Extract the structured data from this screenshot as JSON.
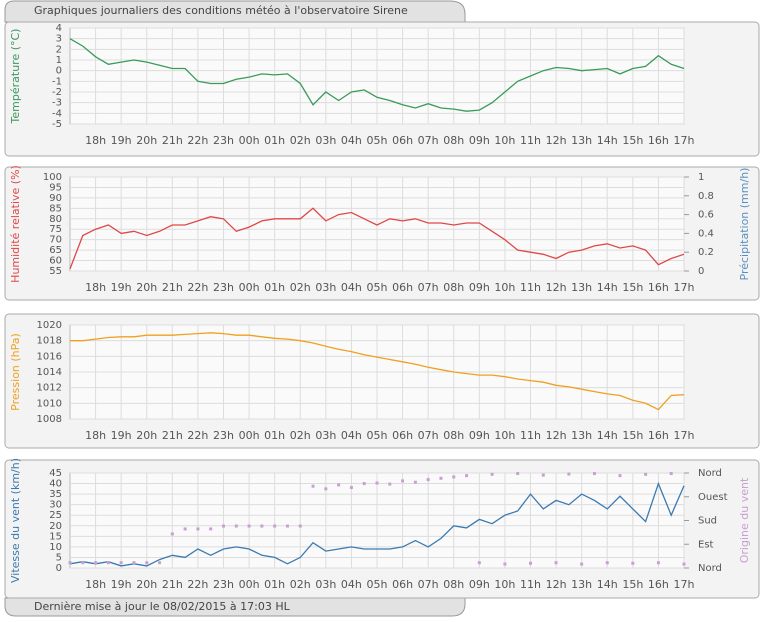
{
  "title": "Graphiques journaliers des conditions météo à l'observatoire Sirene",
  "footer": "Dernière mise à jour le 08/02/2015 à 17:03 HL",
  "chart_data": [
    {
      "type": "line",
      "ylabel": "Température (°C)",
      "grid": true,
      "xlim": [
        17,
        41
      ],
      "xticks": [
        {
          "value": 18,
          "label": "18h"
        },
        {
          "value": 19,
          "label": "19h"
        },
        {
          "value": 20,
          "label": "20h"
        },
        {
          "value": 21,
          "label": "21h"
        },
        {
          "value": 22,
          "label": "22h"
        },
        {
          "value": 23,
          "label": "23h"
        },
        {
          "value": 24,
          "label": "00h"
        },
        {
          "value": 25,
          "label": "01h"
        },
        {
          "value": 26,
          "label": "02h"
        },
        {
          "value": 27,
          "label": "03h"
        },
        {
          "value": 28,
          "label": "04h"
        },
        {
          "value": 29,
          "label": "05h"
        },
        {
          "value": 30,
          "label": "06h"
        },
        {
          "value": 31,
          "label": "07h"
        },
        {
          "value": 32,
          "label": "08h"
        },
        {
          "value": 33,
          "label": "09h"
        },
        {
          "value": 34,
          "label": "10h"
        },
        {
          "value": 35,
          "label": "11h"
        },
        {
          "value": 36,
          "label": "12h"
        },
        {
          "value": 37,
          "label": "13h"
        },
        {
          "value": 38,
          "label": "14h"
        },
        {
          "value": 39,
          "label": "15h"
        },
        {
          "value": 40,
          "label": "16h"
        },
        {
          "value": 41,
          "label": "17h"
        }
      ],
      "ylim": [
        -5,
        4
      ],
      "yticks": [
        -5,
        -4,
        -3,
        -2,
        -1,
        0,
        1,
        2,
        3,
        4
      ],
      "ylabel_color": "#3a9a5c",
      "x": [
        17,
        17.5,
        18,
        18.5,
        19,
        19.5,
        20,
        20.5,
        21,
        21.5,
        22,
        22.5,
        23,
        23.5,
        24,
        24.5,
        25,
        25.5,
        26,
        26.5,
        27,
        27.5,
        28,
        28.5,
        29,
        29.5,
        30,
        30.5,
        31,
        31.5,
        32,
        32.5,
        33,
        33.5,
        34,
        34.5,
        35,
        35.5,
        36,
        36.5,
        37,
        37.5,
        38,
        38.5,
        39,
        39.5,
        40,
        40.5,
        41
      ],
      "series": [
        {
          "color": "#3a9a5c",
          "values": [
            3.0,
            2.3,
            1.3,
            0.6,
            0.8,
            1.0,
            0.8,
            0.5,
            0.2,
            0.2,
            -1.0,
            -1.2,
            -1.2,
            -0.8,
            -0.6,
            -0.3,
            -0.4,
            -0.3,
            -1.2,
            -3.2,
            -2.0,
            -2.8,
            -2.0,
            -1.8,
            -2.5,
            -2.8,
            -3.2,
            -3.5,
            -3.1,
            -3.5,
            -3.6,
            -3.8,
            -3.7,
            -3.0,
            -2.0,
            -1.0,
            -0.5,
            0.0,
            0.3,
            0.2,
            0.0,
            0.1,
            0.2,
            -0.3,
            0.2,
            0.4,
            1.4,
            0.6,
            0.2
          ]
        }
      ]
    },
    {
      "type": "line",
      "ylabel": "Humidité relative (%)",
      "y2label": "Précipitation (mm/h)",
      "grid": true,
      "xlim": [
        17,
        41
      ],
      "xticks": [
        {
          "value": 18,
          "label": "18h"
        },
        {
          "value": 19,
          "label": "19h"
        },
        {
          "value": 20,
          "label": "20h"
        },
        {
          "value": 21,
          "label": "21h"
        },
        {
          "value": 22,
          "label": "22h"
        },
        {
          "value": 23,
          "label": "23h"
        },
        {
          "value": 24,
          "label": "00h"
        },
        {
          "value": 25,
          "label": "01h"
        },
        {
          "value": 26,
          "label": "02h"
        },
        {
          "value": 27,
          "label": "03h"
        },
        {
          "value": 28,
          "label": "04h"
        },
        {
          "value": 29,
          "label": "05h"
        },
        {
          "value": 30,
          "label": "06h"
        },
        {
          "value": 31,
          "label": "07h"
        },
        {
          "value": 32,
          "label": "08h"
        },
        {
          "value": 33,
          "label": "09h"
        },
        {
          "value": 34,
          "label": "10h"
        },
        {
          "value": 35,
          "label": "11h"
        },
        {
          "value": 36,
          "label": "12h"
        },
        {
          "value": 37,
          "label": "13h"
        },
        {
          "value": 38,
          "label": "14h"
        },
        {
          "value": 39,
          "label": "15h"
        },
        {
          "value": 40,
          "label": "16h"
        },
        {
          "value": 41,
          "label": "17h"
        }
      ],
      "ylim": [
        55,
        100
      ],
      "yticks": [
        55,
        60,
        65,
        70,
        75,
        80,
        85,
        90,
        95,
        100
      ],
      "ylabel_color": "#e04848",
      "y2lim": [
        0,
        1
      ],
      "y2ticks": [
        0,
        0.2,
        0.4,
        0.6,
        0.8,
        1
      ],
      "y2label_color": "#5a8fc0",
      "x": [
        17,
        17.5,
        18,
        18.5,
        19,
        19.5,
        20,
        20.5,
        21,
        21.5,
        22,
        22.5,
        23,
        23.5,
        24,
        24.5,
        25,
        25.5,
        26,
        26.5,
        27,
        27.5,
        28,
        28.5,
        29,
        29.5,
        30,
        30.5,
        31,
        31.5,
        32,
        32.5,
        33,
        33.5,
        34,
        34.5,
        35,
        35.5,
        36,
        36.5,
        37,
        37.5,
        38,
        38.5,
        39,
        39.5,
        40,
        40.5,
        41
      ],
      "series": [
        {
          "color": "#e04848",
          "values": [
            56,
            72,
            75,
            77,
            73,
            74,
            72,
            74,
            77,
            77,
            79,
            81,
            80,
            74,
            76,
            79,
            80,
            80,
            80,
            85,
            79,
            82,
            83,
            80,
            77,
            80,
            79,
            80,
            78,
            78,
            77,
            78,
            78,
            74,
            70,
            65,
            64,
            63,
            61,
            64,
            65,
            67,
            68,
            66,
            67,
            65,
            58,
            61,
            63
          ]
        }
      ]
    },
    {
      "type": "line",
      "ylabel": "Pression (hPa)",
      "grid": true,
      "xlim": [
        17,
        41
      ],
      "xticks": [
        {
          "value": 18,
          "label": "18h"
        },
        {
          "value": 19,
          "label": "19h"
        },
        {
          "value": 20,
          "label": "20h"
        },
        {
          "value": 21,
          "label": "21h"
        },
        {
          "value": 22,
          "label": "22h"
        },
        {
          "value": 23,
          "label": "23h"
        },
        {
          "value": 24,
          "label": "00h"
        },
        {
          "value": 25,
          "label": "01h"
        },
        {
          "value": 26,
          "label": "02h"
        },
        {
          "value": 27,
          "label": "03h"
        },
        {
          "value": 28,
          "label": "04h"
        },
        {
          "value": 29,
          "label": "05h"
        },
        {
          "value": 30,
          "label": "06h"
        },
        {
          "value": 31,
          "label": "07h"
        },
        {
          "value": 32,
          "label": "08h"
        },
        {
          "value": 33,
          "label": "09h"
        },
        {
          "value": 34,
          "label": "10h"
        },
        {
          "value": 35,
          "label": "11h"
        },
        {
          "value": 36,
          "label": "12h"
        },
        {
          "value": 37,
          "label": "13h"
        },
        {
          "value": 38,
          "label": "14h"
        },
        {
          "value": 39,
          "label": "15h"
        },
        {
          "value": 40,
          "label": "16h"
        },
        {
          "value": 41,
          "label": "17h"
        }
      ],
      "ylim": [
        1008,
        1020
      ],
      "yticks": [
        1008,
        1010,
        1012,
        1014,
        1016,
        1018,
        1020
      ],
      "ylabel_color": "#f0a020",
      "x": [
        17,
        17.5,
        18,
        18.5,
        19,
        19.5,
        20,
        20.5,
        21,
        21.5,
        22,
        22.5,
        23,
        23.5,
        24,
        24.5,
        25,
        25.5,
        26,
        26.5,
        27,
        27.5,
        28,
        28.5,
        29,
        29.5,
        30,
        30.5,
        31,
        31.5,
        32,
        32.5,
        33,
        33.5,
        34,
        34.5,
        35,
        35.5,
        36,
        36.5,
        37,
        37.5,
        38,
        38.5,
        39,
        39.5,
        40,
        40.5,
        41
      ],
      "series": [
        {
          "color": "#f0a020",
          "values": [
            1018.0,
            1018.0,
            1018.2,
            1018.4,
            1018.5,
            1018.5,
            1018.7,
            1018.7,
            1018.7,
            1018.8,
            1018.9,
            1019.0,
            1018.9,
            1018.7,
            1018.7,
            1018.5,
            1018.3,
            1018.2,
            1018.0,
            1017.7,
            1017.3,
            1016.9,
            1016.6,
            1016.2,
            1015.9,
            1015.6,
            1015.3,
            1015.0,
            1014.6,
            1014.3,
            1014.0,
            1013.8,
            1013.6,
            1013.6,
            1013.4,
            1013.1,
            1012.9,
            1012.7,
            1012.3,
            1012.1,
            1011.8,
            1011.5,
            1011.2,
            1011.0,
            1010.4,
            1010.0,
            1009.2,
            1011.0,
            1011.1
          ]
        }
      ]
    },
    {
      "type": "line",
      "ylabel": "Vitesse du vent (km/h)",
      "y2label": "Origine du vent",
      "grid": true,
      "xlim": [
        17,
        41
      ],
      "xticks": [
        {
          "value": 18,
          "label": "18h"
        },
        {
          "value": 19,
          "label": "19h"
        },
        {
          "value": 20,
          "label": "20h"
        },
        {
          "value": 21,
          "label": "21h"
        },
        {
          "value": 22,
          "label": "22h"
        },
        {
          "value": 23,
          "label": "23h"
        },
        {
          "value": 24,
          "label": "00h"
        },
        {
          "value": 25,
          "label": "01h"
        },
        {
          "value": 26,
          "label": "02h"
        },
        {
          "value": 27,
          "label": "03h"
        },
        {
          "value": 28,
          "label": "04h"
        },
        {
          "value": 29,
          "label": "05h"
        },
        {
          "value": 30,
          "label": "06h"
        },
        {
          "value": 31,
          "label": "07h"
        },
        {
          "value": 32,
          "label": "08h"
        },
        {
          "value": 33,
          "label": "09h"
        },
        {
          "value": 34,
          "label": "10h"
        },
        {
          "value": 35,
          "label": "11h"
        },
        {
          "value": 36,
          "label": "12h"
        },
        {
          "value": 37,
          "label": "13h"
        },
        {
          "value": 38,
          "label": "14h"
        },
        {
          "value": 39,
          "label": "15h"
        },
        {
          "value": 40,
          "label": "16h"
        },
        {
          "value": 41,
          "label": "17h"
        }
      ],
      "ylim": [
        0,
        45
      ],
      "yticks": [
        0,
        5,
        10,
        15,
        20,
        25,
        30,
        35,
        40,
        45
      ],
      "ylabel_color": "#3a7ab0",
      "y2lim": [
        0,
        360
      ],
      "y2ticks": [
        {
          "value": 0,
          "label": "Nord"
        },
        {
          "value": 90,
          "label": "Est"
        },
        {
          "value": 180,
          "label": "Sud"
        },
        {
          "value": 270,
          "label": "Ouest"
        },
        {
          "value": 360,
          "label": "Nord"
        }
      ],
      "y2label_color": "#c8a0d0",
      "x": [
        17,
        17.5,
        18,
        18.5,
        19,
        19.5,
        20,
        20.5,
        21,
        21.5,
        22,
        22.5,
        23,
        23.5,
        24,
        24.5,
        25,
        25.5,
        26,
        26.5,
        27,
        27.5,
        28,
        28.5,
        29,
        29.5,
        30,
        30.5,
        31,
        31.5,
        32,
        32.5,
        33,
        33.5,
        34,
        34.5,
        35,
        35.5,
        36,
        36.5,
        37,
        37.5,
        38,
        38.5,
        39,
        39.5,
        40,
        40.5,
        41
      ],
      "series": [
        {
          "color": "#3a7ab0",
          "values": [
            2,
            3,
            2,
            3,
            1,
            2,
            1,
            4,
            6,
            5,
            9,
            6,
            9,
            10,
            9,
            6,
            5,
            2,
            5,
            12,
            8,
            9,
            10,
            9,
            9,
            9,
            10,
            13,
            10,
            14,
            20,
            19,
            23,
            21,
            25,
            27,
            35,
            28,
            32,
            30,
            35,
            32,
            28,
            34,
            28,
            22,
            40,
            25,
            39
          ]
        },
        {
          "color": "#c8a0d0",
          "axis": "y2",
          "type": "scatter",
          "values": [
            20,
            20,
            20,
            20,
            20,
            20,
            20,
            20,
            129,
            148,
            148,
            148,
            159,
            159,
            159,
            159,
            159,
            159,
            159,
            310,
            300,
            315,
            305,
            320,
            322,
            318,
            330,
            325,
            335,
            340,
            345,
            350,
            20,
            355,
            15,
            358,
            18,
            352,
            20,
            356,
            15,
            358,
            20,
            350,
            18,
            355,
            20,
            358,
            15
          ]
        }
      ]
    }
  ]
}
